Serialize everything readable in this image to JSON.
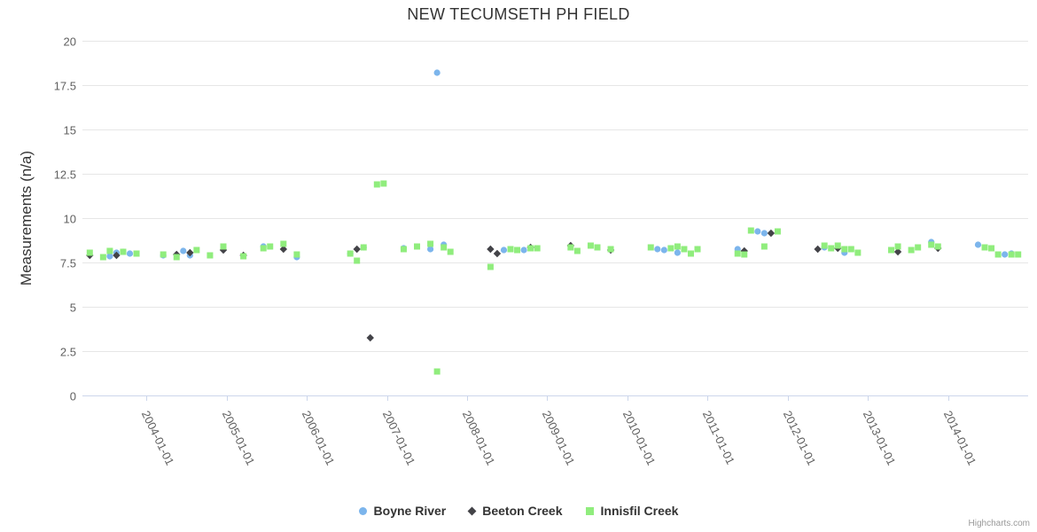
{
  "title": "NEW TECUMSETH PH FIELD",
  "credits": "Highcharts.com",
  "chart_data": {
    "type": "scatter",
    "title": "NEW TECUMSETH PH FIELD",
    "xlabel": "",
    "ylabel": "Measurements (n/a)",
    "ylim": [
      0,
      20
    ],
    "y_ticks": [
      0,
      2.5,
      5,
      7.5,
      10,
      12.5,
      15,
      17.5,
      20
    ],
    "x_ticks": [
      "2004-01-01",
      "2005-01-01",
      "2006-01-01",
      "2007-01-01",
      "2008-01-01",
      "2009-01-01",
      "2010-01-01",
      "2011-01-01",
      "2012-01-01",
      "2013-01-01",
      "2014-01-01"
    ],
    "x_range": [
      "2003-03",
      "2015-01"
    ],
    "grid": true,
    "legend_position": "bottom",
    "axis_colors": {
      "grid": "#e6e6e6",
      "axis_line": "#ccd6eb",
      "tick_label": "#606060"
    },
    "series": [
      {
        "name": "Boyne River",
        "color": "#7cb5ec",
        "marker": "circle",
        "points": [
          [
            "2003-07",
            7.85
          ],
          [
            "2003-08",
            8.05
          ],
          [
            "2003-09",
            8.1
          ],
          [
            "2003-10",
            8.0
          ],
          [
            "2004-03",
            7.9
          ],
          [
            "2004-06",
            8.15
          ],
          [
            "2004-07",
            7.9
          ],
          [
            "2005-06",
            8.4
          ],
          [
            "2005-11",
            7.8
          ],
          [
            "2006-07",
            8.0
          ],
          [
            "2006-09",
            8.35
          ],
          [
            "2007-03",
            8.3
          ],
          [
            "2007-07",
            8.25
          ],
          [
            "2007-08",
            18.2
          ],
          [
            "2007-09",
            8.5
          ],
          [
            "2008-06",
            8.2
          ],
          [
            "2008-09",
            8.2
          ],
          [
            "2010-05",
            8.25
          ],
          [
            "2010-06",
            8.2
          ],
          [
            "2010-08",
            8.05
          ],
          [
            "2010-11",
            8.25
          ],
          [
            "2011-05",
            8.25
          ],
          [
            "2011-08",
            9.25
          ],
          [
            "2011-09",
            9.15
          ],
          [
            "2012-06",
            8.35
          ],
          [
            "2012-09",
            8.05
          ],
          [
            "2013-10",
            8.65
          ],
          [
            "2014-05",
            8.5
          ],
          [
            "2014-09",
            7.95
          ],
          [
            "2014-10",
            8.0
          ]
        ]
      },
      {
        "name": "Beeton Creek",
        "color": "#434348",
        "marker": "diamond",
        "points": [
          [
            "2003-04",
            7.9
          ],
          [
            "2003-08",
            7.9
          ],
          [
            "2004-05",
            7.95
          ],
          [
            "2004-07",
            8.05
          ],
          [
            "2004-12",
            8.2
          ],
          [
            "2005-03",
            7.9
          ],
          [
            "2005-09",
            8.25
          ],
          [
            "2006-08",
            8.25
          ],
          [
            "2006-10",
            3.25
          ],
          [
            "2008-04",
            8.25
          ],
          [
            "2008-05",
            8.0
          ],
          [
            "2008-10",
            8.35
          ],
          [
            "2009-04",
            8.45
          ],
          [
            "2009-10",
            8.2
          ],
          [
            "2011-06",
            8.15
          ],
          [
            "2011-10",
            9.15
          ],
          [
            "2012-05",
            8.25
          ],
          [
            "2012-08",
            8.3
          ],
          [
            "2013-05",
            8.1
          ],
          [
            "2013-11",
            8.3
          ]
        ]
      },
      {
        "name": "Innisfil Creek",
        "color": "#90ed7d",
        "marker": "square",
        "points": [
          [
            "2003-04",
            8.05
          ],
          [
            "2003-06",
            7.8
          ],
          [
            "2003-07",
            8.15
          ],
          [
            "2003-09",
            8.1
          ],
          [
            "2003-11",
            8.0
          ],
          [
            "2004-03",
            7.95
          ],
          [
            "2004-05",
            7.8
          ],
          [
            "2004-08",
            8.2
          ],
          [
            "2004-10",
            7.9
          ],
          [
            "2004-12",
            8.4
          ],
          [
            "2005-03",
            7.85
          ],
          [
            "2005-06",
            8.3
          ],
          [
            "2005-07",
            8.4
          ],
          [
            "2005-09",
            8.55
          ],
          [
            "2005-11",
            7.95
          ],
          [
            "2006-07",
            8.0
          ],
          [
            "2006-08",
            7.6
          ],
          [
            "2006-09",
            8.35
          ],
          [
            "2006-11",
            11.9
          ],
          [
            "2006-12",
            11.95
          ],
          [
            "2007-03",
            8.25
          ],
          [
            "2007-05",
            8.4
          ],
          [
            "2007-07",
            8.55
          ],
          [
            "2007-08",
            1.35
          ],
          [
            "2007-09",
            8.35
          ],
          [
            "2007-10",
            8.1
          ],
          [
            "2008-04",
            7.25
          ],
          [
            "2008-07",
            8.25
          ],
          [
            "2008-08",
            8.2
          ],
          [
            "2008-10",
            8.3
          ],
          [
            "2008-11",
            8.3
          ],
          [
            "2009-04",
            8.35
          ],
          [
            "2009-05",
            8.15
          ],
          [
            "2009-07",
            8.45
          ],
          [
            "2009-08",
            8.35
          ],
          [
            "2009-10",
            8.25
          ],
          [
            "2010-04",
            8.35
          ],
          [
            "2010-07",
            8.3
          ],
          [
            "2010-08",
            8.4
          ],
          [
            "2010-09",
            8.25
          ],
          [
            "2010-10",
            8.0
          ],
          [
            "2010-11",
            8.25
          ],
          [
            "2011-05",
            8.0
          ],
          [
            "2011-06",
            7.95
          ],
          [
            "2011-07",
            9.3
          ],
          [
            "2011-09",
            8.4
          ],
          [
            "2011-11",
            9.25
          ],
          [
            "2012-06",
            8.45
          ],
          [
            "2012-07",
            8.3
          ],
          [
            "2012-08",
            8.45
          ],
          [
            "2012-09",
            8.25
          ],
          [
            "2012-10",
            8.25
          ],
          [
            "2012-11",
            8.05
          ],
          [
            "2013-04",
            8.2
          ],
          [
            "2013-05",
            8.4
          ],
          [
            "2013-07",
            8.2
          ],
          [
            "2013-08",
            8.35
          ],
          [
            "2013-10",
            8.5
          ],
          [
            "2013-11",
            8.4
          ],
          [
            "2014-06",
            8.35
          ],
          [
            "2014-07",
            8.3
          ],
          [
            "2014-08",
            7.95
          ],
          [
            "2014-10",
            7.95
          ],
          [
            "2014-11",
            7.95
          ]
        ]
      }
    ]
  }
}
